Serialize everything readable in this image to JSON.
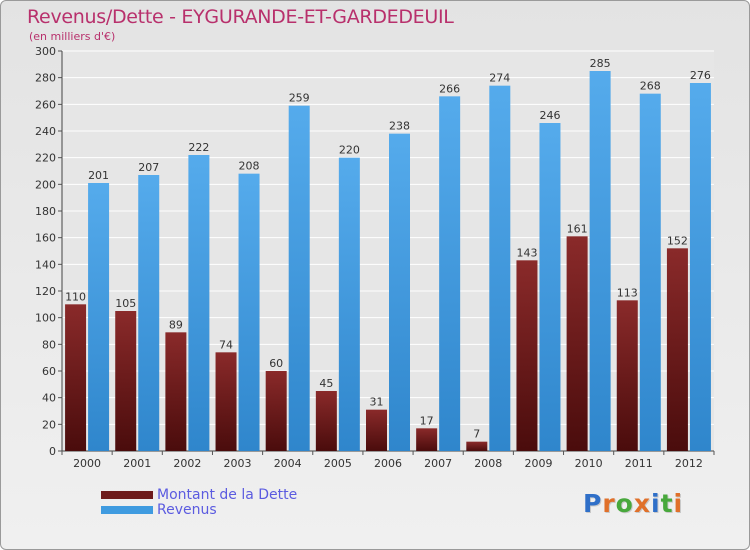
{
  "title": "Revenus/Dette - EYGURANDE-ET-GARDEDEUIL",
  "subtitle": "(en milliers d'€)",
  "colors": {
    "dette": "#6e1c1c",
    "revenus": "#3f9be0",
    "title": "#b8306c",
    "legend_text": "#5b5be0"
  },
  "legend": [
    {
      "label": "Montant de la Dette",
      "color": "#6e1c1c"
    },
    {
      "label": "Revenus",
      "color": "#3f9be0"
    }
  ],
  "logo": {
    "text": "Proxiti"
  },
  "chart_data": {
    "type": "bar",
    "categories": [
      "2000",
      "2001",
      "2002",
      "2003",
      "2004",
      "2005",
      "2006",
      "2007",
      "2008",
      "2009",
      "2010",
      "2011",
      "2012"
    ],
    "series": [
      {
        "name": "Montant de la Dette",
        "values": [
          110,
          105,
          89,
          74,
          60,
          45,
          31,
          17,
          7,
          143,
          161,
          113,
          152
        ]
      },
      {
        "name": "Revenus",
        "values": [
          201,
          207,
          222,
          208,
          259,
          220,
          238,
          266,
          274,
          246,
          285,
          268,
          276
        ]
      }
    ],
    "yticks": [
      0,
      20,
      40,
      60,
      80,
      100,
      120,
      140,
      160,
      180,
      200,
      220,
      240,
      260,
      280,
      300
    ],
    "ylim": [
      0,
      300
    ],
    "grid": true,
    "legend_position": "bottom-left"
  }
}
